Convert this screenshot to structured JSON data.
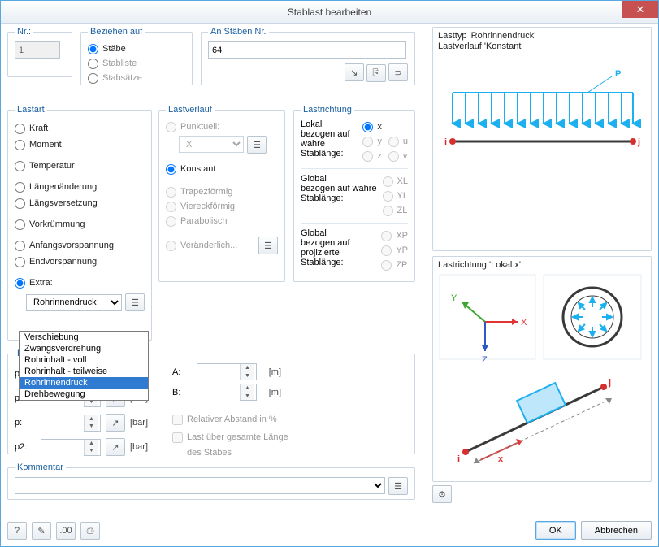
{
  "window": {
    "title": "Stablast bearbeiten"
  },
  "nr": {
    "legend": "Nr.:",
    "value": "1"
  },
  "beziehen": {
    "legend": "Beziehen auf",
    "opts": [
      "Stäbe",
      "Stabliste",
      "Stabsätze"
    ],
    "selected": 0
  },
  "anStaben": {
    "legend": "An Stäben Nr.",
    "value": "64"
  },
  "lastart": {
    "legend": "Lastart",
    "opts": [
      "Kraft",
      "Moment",
      "Temperatur",
      "Längenänderung",
      "Längsversetzung",
      "Vorkrümmung",
      "Anfangsvorspannung",
      "Endvorspannung",
      "Extra:"
    ],
    "selected": 8,
    "extra_value": "Rohrinnendruck",
    "extra_options": [
      "Verschiebung",
      "Zwangsverdrehung",
      "Rohrinhalt - voll",
      "Rohrinhalt - teilweise",
      "Rohrinnendruck",
      "Drehbewegung"
    ],
    "extra_highlight": 4
  },
  "lastverlauf": {
    "legend": "Lastverlauf",
    "opts": [
      {
        "label": "Punktuell:",
        "enabled": false
      },
      {
        "label": "Konstant",
        "enabled": true
      },
      {
        "label": "Trapezförmig",
        "enabled": false
      },
      {
        "label": "Viereckförmig",
        "enabled": false
      },
      {
        "label": "Parabolisch",
        "enabled": false
      },
      {
        "label": "Veränderlich...",
        "enabled": false
      }
    ],
    "selected": 1,
    "punkt_value": "X"
  },
  "lastrichtung": {
    "legend": "Lastrichtung",
    "group1_label": "Lokal\nbezogen auf wahre\nStablänge:",
    "group1": [
      {
        "k": "x",
        "sel": true
      },
      {
        "k": "y"
      },
      {
        "k": "u"
      },
      {
        "k": "z"
      },
      {
        "k": "v"
      }
    ],
    "group2_label": "Global\nbezogen auf wahre\nStablänge:",
    "group2": [
      {
        "k": "XL"
      },
      {
        "k": "YL"
      },
      {
        "k": "ZL"
      }
    ],
    "group3_label": "Global\nbezogen auf projizierte\nStablänge:",
    "group3": [
      {
        "k": "XP"
      },
      {
        "k": "YP"
      },
      {
        "k": "ZP"
      }
    ]
  },
  "params": {
    "legend": "Las",
    "rows": [
      {
        "lbl": "p:",
        "unit": "[bar]"
      },
      {
        "lbl": "p2:",
        "unit": "[bar]"
      },
      {
        "lbl": "p:",
        "unit": "[bar]"
      },
      {
        "lbl": "p2:",
        "unit": "[bar]"
      }
    ],
    "a_lbl": "A:",
    "a_unit": "[m]",
    "b_lbl": "B:",
    "b_unit": "[m]",
    "chk_rel": "Relativer Abstand in %",
    "chk_full": "Last über gesamte Länge",
    "chk_full2": "des Stabes"
  },
  "kommentar": {
    "legend": "Kommentar"
  },
  "previews": {
    "top_line1": "Lasttyp 'Rohrinnendruck'",
    "top_line2": "Lastverlauf 'Konstant'",
    "dir_title": "Lastrichtung 'Lokal x'",
    "p_label": "P",
    "i_label": "i",
    "j_label": "j",
    "x_label": "X",
    "y_label": "Y",
    "z_label": "Z",
    "x2_label": "x",
    "colors": {
      "load": "#1cb0f0",
      "beam": "#3a3a3a",
      "node_i": "#d62f2f",
      "node_j": "#d62f2f",
      "axis_x": "#e33434",
      "axis_y": "#39a62f",
      "axis_z": "#2f58c7"
    }
  },
  "buttons": {
    "ok": "OK",
    "cancel": "Abbrechen"
  }
}
